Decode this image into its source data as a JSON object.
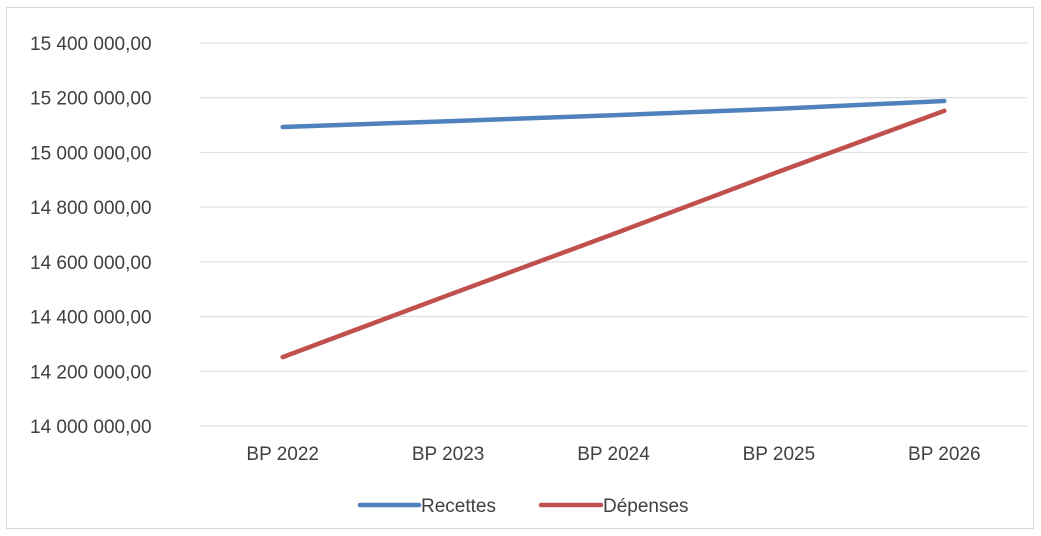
{
  "chart_data": {
    "type": "line",
    "title": "",
    "xlabel": "",
    "ylabel": "",
    "categories": [
      "BP 2022",
      "BP 2023",
      "BP 2024",
      "BP 2025",
      "BP 2026"
    ],
    "series": [
      {
        "name": "Recettes",
        "color": "#4f81bd",
        "values": [
          15093000,
          15114000,
          15136000,
          15160000,
          15188000
        ]
      },
      {
        "name": "Dépenses",
        "color": "#c0504d",
        "values": [
          14252000,
          14478000,
          14702000,
          14930000,
          15152000
        ]
      }
    ],
    "ylim": [
      14000000,
      15400000
    ],
    "yticks": [
      14000000,
      14200000,
      14400000,
      14600000,
      14800000,
      15000000,
      15200000,
      15400000
    ],
    "ytick_labels": [
      "14 000 000,00",
      "14 200 000,00",
      "14 400 000,00",
      "14 600 000,00",
      "14 800 000,00",
      "15 000 000,00",
      "15 200 000,00",
      "15 400 000,00"
    ],
    "grid": true,
    "legend_position": "bottom"
  }
}
